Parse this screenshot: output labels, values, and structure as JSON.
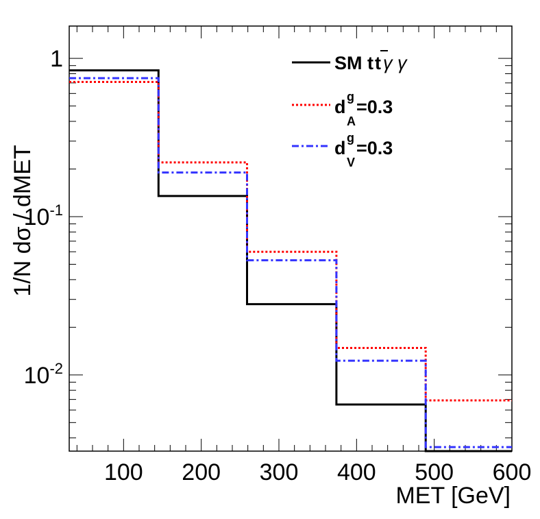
{
  "chart_data": {
    "type": "histogram-step",
    "title": "",
    "xlabel": "MET [GeV]",
    "ylabel": "1/N dσ / dMET",
    "xlim": [
      30,
      600
    ],
    "ylim": [
      0.0033,
      1.6
    ],
    "yscale": "log",
    "grid": false,
    "legend_position": "top-right",
    "x_ticks": [
      100,
      200,
      300,
      400,
      500,
      600
    ],
    "x_tick_labels": [
      "100",
      "200",
      "300",
      "400",
      "500",
      "600"
    ],
    "y_ticks": [
      {
        "value": 1,
        "base": "1",
        "exp": ""
      },
      {
        "value": 0.1,
        "base": "10",
        "exp": "-1"
      },
      {
        "value": 0.01,
        "base": "10",
        "exp": "-2"
      }
    ],
    "bin_edges": [
      30,
      145,
      259,
      374,
      489,
      600
    ],
    "series": [
      {
        "name": "SM t t̄γγ",
        "color": "#000000",
        "style": "solid",
        "values": [
          0.84,
          0.135,
          0.028,
          0.0065,
          0.0028
        ]
      },
      {
        "name": "d^g_A=0.3",
        "color": "#ff0000",
        "style": "dotted",
        "values": [
          0.71,
          0.22,
          0.06,
          0.0148,
          0.0069
        ]
      },
      {
        "name": "d^g_V=0.3",
        "color": "#3333ff",
        "style": "dashdot",
        "values": [
          0.75,
          0.19,
          0.053,
          0.0123,
          0.0035
        ]
      }
    ]
  },
  "legend": {
    "sm": {
      "prefix": "SM t",
      "tbar": "t",
      "suffix": "γ γ"
    },
    "da": {
      "main": "d",
      "sup": "g",
      "sub": "A",
      "value": "=0.3"
    },
    "dv": {
      "main": "d",
      "sup": "g",
      "sub": "V",
      "value": "=0.3"
    }
  }
}
